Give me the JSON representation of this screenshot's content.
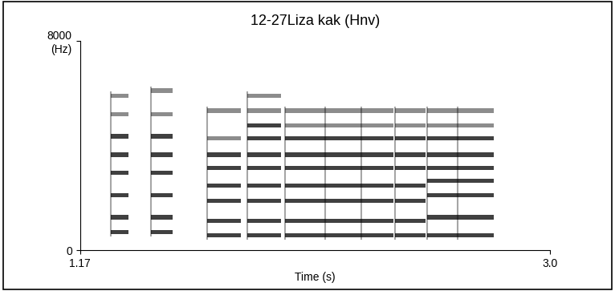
{
  "chart_data": {
    "type": "spectrogram",
    "title": "12-27Liza kak (Hnv)",
    "x_label": "Time (s)",
    "xlim": [
      1.17,
      3.0
    ],
    "xticks": [
      {
        "value": 1.17,
        "label": "1.17"
      },
      {
        "value": 3.0,
        "label": "3.0"
      }
    ],
    "ylim": [
      0,
      8000
    ],
    "yticks": [
      0,
      {
        "value": 8000,
        "label": "8000\n(Hz)"
      }
    ],
    "color": "#000000",
    "tick_labels": true,
    "segments": [
      {
        "start": 1.289,
        "end": 1.358,
        "bands": [
          700,
          1260,
          2100,
          2950,
          3650,
          4350,
          5200,
          5900
        ]
      },
      {
        "start": 1.445,
        "end": 1.53,
        "bands": [
          700,
          1260,
          2100,
          2950,
          3650,
          4350,
          5200,
          6100
        ]
      },
      {
        "start": 1.664,
        "end": 1.796,
        "bands": [
          560,
          1120,
          1880,
          2470,
          3140,
          3650,
          4270,
          5330
        ]
      },
      {
        "start": 1.821,
        "end": 1.952,
        "bands": [
          560,
          1120,
          1880,
          2470,
          3140,
          3650,
          4270,
          4770,
          5330,
          5900
        ]
      },
      {
        "start": 1.968,
        "end": 2.124,
        "bands": [
          560,
          1120,
          1880,
          2470,
          3140,
          3650,
          4270,
          4770,
          5330
        ]
      },
      {
        "start": 2.124,
        "end": 2.265,
        "bands": [
          560,
          1120,
          1880,
          2470,
          3140,
          3650,
          4270,
          4770,
          5330
        ]
      },
      {
        "start": 2.265,
        "end": 2.39,
        "bands": [
          560,
          1120,
          1880,
          2470,
          3140,
          3650,
          4270,
          4770,
          5330
        ]
      },
      {
        "start": 2.396,
        "end": 2.516,
        "bands": [
          560,
          1120,
          1880,
          2470,
          3140,
          3650,
          4270,
          4770,
          5330
        ]
      },
      {
        "start": 2.522,
        "end": 2.641,
        "bands": [
          560,
          1260,
          2100,
          2650,
          3140,
          3650,
          4270,
          4770,
          5330
        ]
      },
      {
        "start": 2.641,
        "end": 2.781,
        "bands": [
          560,
          1260,
          2100,
          2650,
          3140,
          3650,
          4270,
          4770,
          5330
        ]
      }
    ]
  }
}
